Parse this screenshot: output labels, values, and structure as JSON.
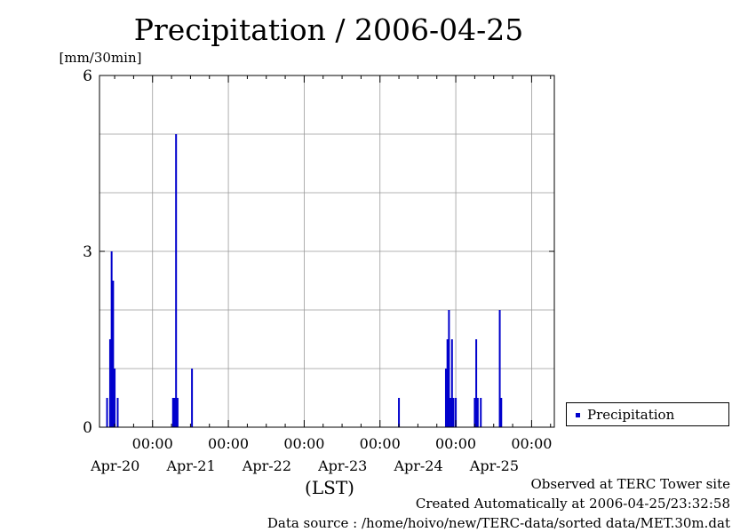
{
  "chart_data": {
    "type": "bar",
    "title": "Precipitation / 2006-04-25",
    "ylabel": "[mm/30min]",
    "xlabel": "(LST)",
    "ylim": [
      0,
      6
    ],
    "yticks": [
      0,
      3,
      6
    ],
    "xlim_days": [
      -0.7,
      5.3
    ],
    "x_unit": "days since 2006-04-20 00:00 LST",
    "xticks": [
      {
        "day": 0,
        "time": "00:00",
        "date": "Apr-20"
      },
      {
        "day": 1,
        "time": "00:00",
        "date": "Apr-21"
      },
      {
        "day": 2,
        "time": "00:00",
        "date": "Apr-22"
      },
      {
        "day": 3,
        "time": "00:00",
        "date": "Apr-23"
      },
      {
        "day": 4,
        "time": "00:00",
        "date": "Apr-24"
      },
      {
        "day": 5,
        "time": "00:00",
        "date": "Apr-25"
      }
    ],
    "series": [
      {
        "name": "Precipitation",
        "color": "#0000cc",
        "points": [
          {
            "day": -0.6,
            "value": 0.5
          },
          {
            "day": -0.56,
            "value": 1.5
          },
          {
            "day": -0.54,
            "value": 3.0
          },
          {
            "day": -0.52,
            "value": 2.5
          },
          {
            "day": -0.5,
            "value": 1.0
          },
          {
            "day": -0.46,
            "value": 0.5
          },
          {
            "day": 0.27,
            "value": 0.5
          },
          {
            "day": 0.29,
            "value": 0.5
          },
          {
            "day": 0.31,
            "value": 5.0
          },
          {
            "day": 0.33,
            "value": 0.5
          },
          {
            "day": 0.52,
            "value": 1.0
          },
          {
            "day": 3.25,
            "value": 0.5
          },
          {
            "day": 3.87,
            "value": 1.0
          },
          {
            "day": 3.89,
            "value": 1.5
          },
          {
            "day": 3.91,
            "value": 2.0
          },
          {
            "day": 3.93,
            "value": 0.5
          },
          {
            "day": 3.95,
            "value": 1.5
          },
          {
            "day": 3.97,
            "value": 0.5
          },
          {
            "day": 4.0,
            "value": 0.5
          },
          {
            "day": 4.25,
            "value": 0.5
          },
          {
            "day": 4.27,
            "value": 1.5
          },
          {
            "day": 4.29,
            "value": 0.5
          },
          {
            "day": 4.33,
            "value": 0.5
          },
          {
            "day": 4.58,
            "value": 2.0
          },
          {
            "day": 4.6,
            "value": 0.5
          }
        ]
      }
    ],
    "legend": {
      "label": "Precipitation",
      "placement": "right"
    }
  },
  "footer": {
    "line1": "Observed at TERC Tower site",
    "line2": "Created Automatically at 2006-04-25/23:32:58",
    "line3": "Data source : /home/hoivo/new/TERC-data/sorted  data/MET.30m.dat"
  }
}
